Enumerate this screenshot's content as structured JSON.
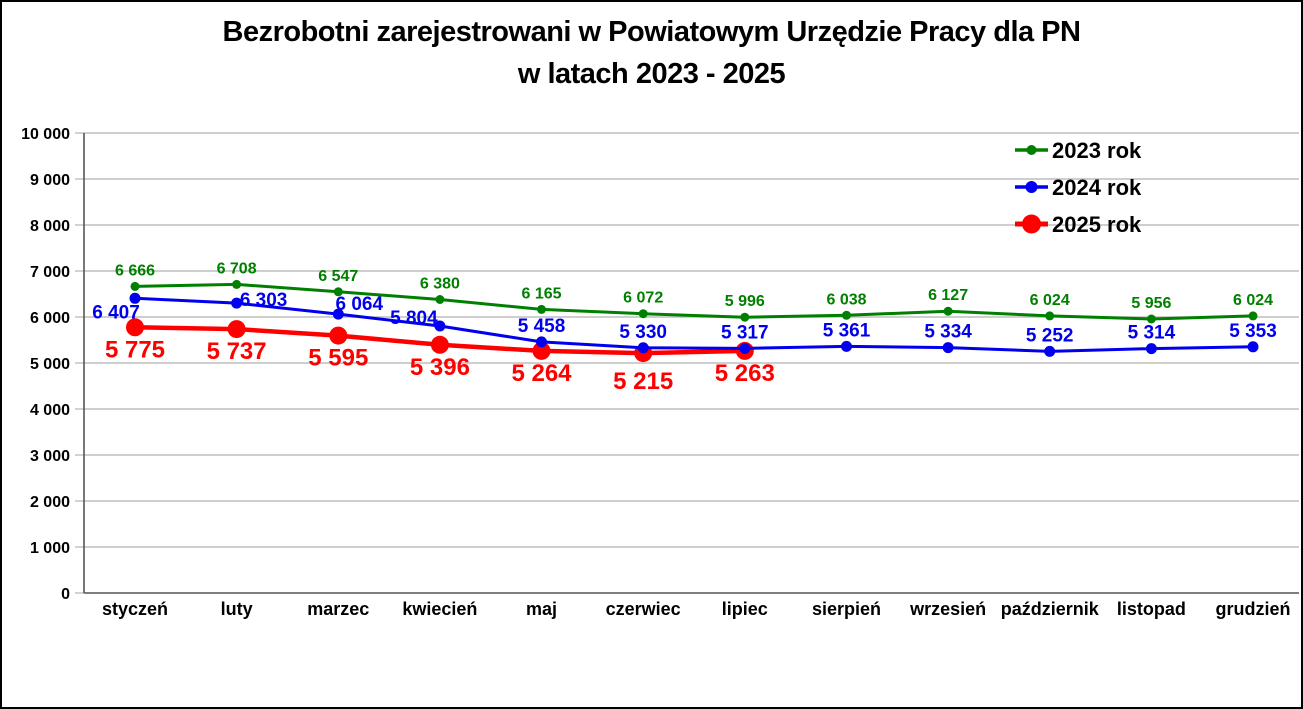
{
  "title": {
    "line1": "Bezrobotni zarejestrowani w Powiatowym Urzędzie Pracy dla PN",
    "line2": "w latach 2023 - 2025"
  },
  "chart_data": {
    "type": "line",
    "title": "Bezrobotni zarejestrowani w Powiatowym Urzędzie Pracy dla PN w latach 2023 - 2025",
    "categories": [
      "styczeń",
      "luty",
      "marzec",
      "kwiecień",
      "maj",
      "czerwiec",
      "lipiec",
      "sierpień",
      "wrzesień",
      "październik",
      "listopad",
      "grudzień"
    ],
    "series": [
      {
        "name": "2023 rok",
        "color": "#008000",
        "values": [
          6666,
          6708,
          6547,
          6380,
          6165,
          6072,
          5996,
          6038,
          6127,
          6024,
          5956,
          6024
        ]
      },
      {
        "name": "2024 rok",
        "color": "#0000EE",
        "values": [
          6407,
          6303,
          6064,
          5804,
          5458,
          5330,
          5317,
          5361,
          5334,
          5252,
          5314,
          5353
        ]
      },
      {
        "name": "2025 rok",
        "color": "#FF0000",
        "values": [
          5775,
          5737,
          5595,
          5396,
          5264,
          5215,
          5263
        ]
      }
    ],
    "xlabel": "",
    "ylabel": "",
    "ylim": [
      0,
      10000
    ],
    "ytick_step": 1000,
    "ytick_labels": [
      "0",
      "1 000",
      "2 000",
      "3 000",
      "4 000",
      "5 000",
      "6 000",
      "7 000",
      "8 000",
      "9 000",
      "10 000"
    ],
    "grid": true,
    "data_labels_visible": true,
    "number_format": "space-thousands",
    "legend_position": "top-right",
    "gridline_color": "#BEBEBE",
    "axis_color": "#555555",
    "text_color": "#000000",
    "background_color": "#FFFFFF"
  }
}
